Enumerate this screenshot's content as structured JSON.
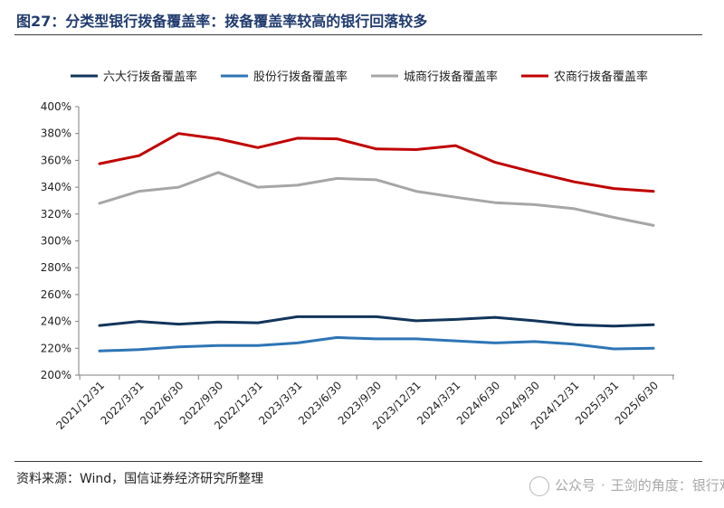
{
  "figure": {
    "title": "图27：分类型银行拨备覆盖率：拨备覆盖率较高的银行回落较多",
    "source": "资料来源：Wind，国信证券经济研究所整理",
    "watermark": {
      "left": "公众号",
      "right": "王剑的角度：银行观察"
    }
  },
  "chart_data": {
    "type": "line",
    "title": "",
    "xlabel": "",
    "ylabel": "",
    "ylim": [
      200,
      400
    ],
    "yticks": [
      200,
      220,
      240,
      260,
      280,
      300,
      320,
      340,
      360,
      380,
      400
    ],
    "ytick_labels": [
      "200%",
      "220%",
      "240%",
      "260%",
      "280%",
      "300%",
      "320%",
      "340%",
      "360%",
      "380%",
      "400%"
    ],
    "legend_position": "top",
    "grid": false,
    "categories": [
      "2021/12/31",
      "2022/3/31",
      "2022/6/30",
      "2022/9/30",
      "2022/12/31",
      "2023/3/31",
      "2023/6/30",
      "2023/9/30",
      "2023/12/31",
      "2024/3/31",
      "2024/6/30",
      "2024/9/30",
      "2024/12/31",
      "2025/3/31",
      "2025/6/30"
    ],
    "series": [
      {
        "name": "六大行拨备覆盖率",
        "color": "#12355b",
        "values": [
          237,
          240,
          238,
          239.5,
          239,
          243.5,
          243.5,
          243.5,
          240.5,
          241.5,
          243,
          240.5,
          237.5,
          236.5,
          237.5
        ]
      },
      {
        "name": "股份行拨备覆盖率",
        "color": "#2e75b6",
        "values": [
          218,
          219,
          221,
          222,
          222,
          224,
          228,
          227,
          227,
          225.5,
          224,
          225,
          223,
          219.5,
          220
        ]
      },
      {
        "name": "城商行拨备覆盖率",
        "color": "#a6a6a6",
        "values": [
          328,
          337,
          340,
          351,
          340,
          341.5,
          346.5,
          345.5,
          337,
          332.5,
          328.5,
          327,
          324,
          317.5,
          311.5
        ]
      },
      {
        "name": "农商行拨备覆盖率",
        "color": "#c00000",
        "values": [
          357.5,
          363.5,
          380,
          376,
          369.5,
          376.5,
          376,
          368.5,
          368,
          371,
          358.5,
          351,
          344,
          339,
          337
        ]
      }
    ]
  }
}
